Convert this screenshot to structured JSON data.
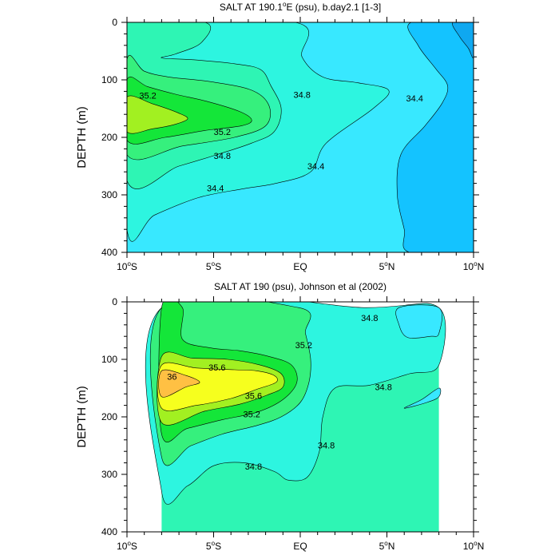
{
  "colors": {
    "c343": "#0fa8f0",
    "c344": "#14c3ff",
    "c346": "#38e8ff",
    "c348": "#2df5e0",
    "c350": "#2ef5b4",
    "c352": "#36f07d",
    "c354": "#14e639",
    "c356": "#a2f021",
    "c358": "#f6ff1e",
    "c360": "#ffc043",
    "nodata": "#ffffff"
  },
  "chart_data": [
    {
      "type": "contour",
      "title_main": "SALT AT 190.1",
      "title_deg": "o",
      "title_rest": "E (psu), b.day2.1 [1-3]",
      "ylabel": "DEPTH (m)",
      "xlim": [
        -10,
        10
      ],
      "ylim": [
        400,
        0
      ],
      "x_ticks": [
        {
          "x": -10,
          "label": "10",
          "deg": "o",
          "hemi": "S"
        },
        {
          "x": -5,
          "label": "5",
          "deg": "o",
          "hemi": "S"
        },
        {
          "x": 0,
          "label": "EQ",
          "deg": "",
          "hemi": ""
        },
        {
          "x": 5,
          "label": "5",
          "deg": "o",
          "hemi": "N"
        },
        {
          "x": 10,
          "label": "10",
          "deg": "o",
          "hemi": "N"
        }
      ],
      "y_ticks": [
        "0",
        "100",
        "200",
        "300",
        "400"
      ],
      "contour_labels": [
        {
          "text": "35.2",
          "x": -8.8,
          "y": 127
        },
        {
          "text": "35.2",
          "x": -4.5,
          "y": 190
        },
        {
          "text": "34.8",
          "x": -4.5,
          "y": 232
        },
        {
          "text": "34.4",
          "x": -4.9,
          "y": 288
        },
        {
          "text": "34.8",
          "x": 0.1,
          "y": 126
        },
        {
          "text": "34.4",
          "x": 0.9,
          "y": 250
        },
        {
          "text": "34.4",
          "x": 6.6,
          "y": 132
        }
      ],
      "regions": [
        {
          "level": "c346",
          "path": [
            [
              -10,
              0
            ],
            [
              10,
              0
            ],
            [
              10,
              400
            ],
            [
              -10,
              400
            ]
          ]
        },
        {
          "level": "c348",
          "path": [
            [
              -10,
              0
            ],
            [
              -0.3,
              0
            ],
            [
              0.1,
              60
            ],
            [
              1.3,
              95
            ],
            [
              3.3,
              105
            ],
            [
              5.1,
              118
            ],
            [
              4.2,
              150
            ],
            [
              1.5,
              210
            ],
            [
              0.6,
              260
            ],
            [
              -1.4,
              280
            ],
            [
              -3.4,
              290
            ],
            [
              -5.9,
              305
            ],
            [
              -8.4,
              335
            ],
            [
              -10,
              360
            ]
          ]
        },
        {
          "level": "c344",
          "path": [
            [
              6.4,
              0
            ],
            [
              10,
              0
            ],
            [
              10,
              400
            ],
            [
              6.3,
              400
            ],
            [
              6.0,
              360
            ],
            [
              5.6,
              300
            ],
            [
              5.8,
              230
            ],
            [
              7.2,
              180
            ],
            [
              8.2,
              140
            ],
            [
              8.5,
              110
            ],
            [
              7.8,
              80
            ],
            [
              6.8,
              40
            ]
          ]
        },
        {
          "level": "c343",
          "path": [
            [
              8.8,
              0
            ],
            [
              10,
              0
            ],
            [
              10,
              60
            ],
            [
              9.7,
              45
            ],
            [
              9.2,
              25
            ]
          ]
        },
        {
          "level": "c350",
          "path": [
            [
              -10,
              0
            ],
            [
              -5.5,
              0
            ],
            [
              -5.7,
              35
            ],
            [
              -7.2,
              55
            ],
            [
              -8.0,
              62
            ],
            [
              -6.2,
              65
            ],
            [
              -3.8,
              72
            ],
            [
              -2.3,
              82
            ],
            [
              -1.7,
              110
            ],
            [
              -1.1,
              150
            ],
            [
              -1.5,
              190
            ],
            [
              -2.8,
              210
            ],
            [
              -4.8,
              230
            ],
            [
              -7.0,
              250
            ],
            [
              -10,
              275
            ]
          ]
        },
        {
          "level": "c352",
          "path": [
            [
              -10,
              65
            ],
            [
              -9.0,
              85
            ],
            [
              -7.6,
              95
            ],
            [
              -5.2,
              103
            ],
            [
              -2.8,
              118
            ],
            [
              -1.8,
              145
            ],
            [
              -2.0,
              180
            ],
            [
              -3.8,
              200
            ],
            [
              -6.8,
              215
            ],
            [
              -10,
              230
            ]
          ]
        },
        {
          "level": "c354",
          "path": [
            [
              -10,
              100
            ],
            [
              -8.8,
              112
            ],
            [
              -7.2,
              125
            ],
            [
              -5.3,
              138
            ],
            [
              -3.5,
              155
            ],
            [
              -2.8,
              170
            ],
            [
              -3.4,
              180
            ],
            [
              -5.5,
              188
            ],
            [
              -7.8,
              200
            ],
            [
              -10,
              205
            ]
          ]
        },
        {
          "level": "c356",
          "path": [
            [
              -10,
              130
            ],
            [
              -8.5,
              142
            ],
            [
              -7.0,
              158
            ],
            [
              -6.5,
              168
            ],
            [
              -7.3,
              178
            ],
            [
              -8.5,
              185
            ],
            [
              -10,
              190
            ]
          ]
        }
      ]
    },
    {
      "type": "contour",
      "title_main": "SALT AT 190 (psu), Johnson et al (2002)",
      "title_deg": "",
      "title_rest": "",
      "ylabel": "DEPTH (m)",
      "xlim": [
        -10,
        10
      ],
      "ylim": [
        400,
        0
      ],
      "data_xlim": [
        -8,
        8
      ],
      "data_ylim": [
        10,
        400
      ],
      "x_ticks": [
        {
          "x": -10,
          "label": "10",
          "deg": "o",
          "hemi": "S"
        },
        {
          "x": -5,
          "label": "5",
          "deg": "o",
          "hemi": "S"
        },
        {
          "x": 0,
          "label": "EQ",
          "deg": "",
          "hemi": ""
        },
        {
          "x": 5,
          "label": "5",
          "deg": "o",
          "hemi": "N"
        },
        {
          "x": 10,
          "label": "10",
          "deg": "o",
          "hemi": "N"
        }
      ],
      "y_ticks": [
        "0",
        "100",
        "200",
        "300",
        "400"
      ],
      "contour_labels": [
        {
          "text": "34.8",
          "x": 4.0,
          "y": 28
        },
        {
          "text": "35.2",
          "x": 0.2,
          "y": 75
        },
        {
          "text": "35.6",
          "x": -4.8,
          "y": 114
        },
        {
          "text": "36",
          "x": -7.4,
          "y": 130
        },
        {
          "text": "35.6",
          "x": -2.7,
          "y": 163
        },
        {
          "text": "35.2",
          "x": -2.8,
          "y": 195
        },
        {
          "text": "34.8",
          "x": 4.8,
          "y": 148
        },
        {
          "text": "34.8",
          "x": 1.5,
          "y": 249
        },
        {
          "text": "34.8",
          "x": -2.7,
          "y": 286
        }
      ],
      "regions": [
        {
          "level": "c350",
          "path": [
            [
              -8,
              10
            ],
            [
              8,
              10
            ],
            [
              8,
              400
            ],
            [
              -8,
              400
            ]
          ]
        },
        {
          "level": "c348",
          "path": [
            [
              3.8,
              10
            ],
            [
              8,
              10
            ],
            [
              8,
              110
            ],
            [
              6.3,
              125
            ],
            [
              4.0,
              145
            ],
            [
              2.0,
              150
            ],
            [
              1.3,
              200
            ],
            [
              1.1,
              260
            ],
            [
              0.4,
              305
            ],
            [
              -0.7,
              310
            ],
            [
              -1.5,
              295
            ],
            [
              -3.2,
              280
            ],
            [
              -5.0,
              285
            ],
            [
              -6.5,
              320
            ],
            [
              -8,
              330
            ],
            [
              -8,
              10
            ]
          ]
        },
        {
          "level": "c346",
          "path": [
            [
              5.7,
              10
            ],
            [
              8,
              10
            ],
            [
              8,
              55
            ],
            [
              7.5,
              60
            ],
            [
              6.2,
              62
            ],
            [
              5.7,
              40
            ]
          ]
        },
        {
          "level": "c346",
          "path": [
            [
              8,
              150
            ],
            [
              7.0,
              170
            ],
            [
              6.0,
              185
            ],
            [
              7.3,
              175
            ],
            [
              8,
              165
            ]
          ]
        },
        {
          "level": "c352",
          "path": [
            [
              -8,
              10
            ],
            [
              -0.1,
              10
            ],
            [
              0.3,
              55
            ],
            [
              0.6,
              100
            ],
            [
              0.5,
              140
            ],
            [
              0.0,
              175
            ],
            [
              -1.1,
              200
            ],
            [
              -2.5,
              215
            ],
            [
              -4.5,
              230
            ],
            [
              -6.3,
              250
            ],
            [
              -8,
              270
            ]
          ]
        },
        {
          "level": "c354",
          "path": [
            [
              -8,
              10
            ],
            [
              -6.8,
              10
            ],
            [
              -6.8,
              65
            ],
            [
              -5.2,
              80
            ],
            [
              -3.5,
              85
            ],
            [
              -1.8,
              95
            ],
            [
              -0.5,
              110
            ],
            [
              -0.2,
              140
            ],
            [
              -1.0,
              170
            ],
            [
              -2.5,
              192
            ],
            [
              -4.5,
              205
            ],
            [
              -6.5,
              220
            ],
            [
              -8,
              230
            ]
          ]
        },
        {
          "level": "c356",
          "path": [
            [
              -8,
              95
            ],
            [
              -6.2,
              98
            ],
            [
              -4.2,
              100
            ],
            [
              -2.3,
              110
            ],
            [
              -1.1,
              125
            ],
            [
              -1.0,
              148
            ],
            [
              -1.9,
              162
            ],
            [
              -3.5,
              178
            ],
            [
              -5.5,
              190
            ],
            [
              -8,
              210
            ]
          ]
        },
        {
          "level": "c358",
          "path": [
            [
              -8,
              110
            ],
            [
              -6.0,
              115
            ],
            [
              -3.8,
              118
            ],
            [
              -2.5,
              120
            ],
            [
              -1.5,
              128
            ],
            [
              -1.4,
              140
            ],
            [
              -2.5,
              152
            ],
            [
              -4.0,
              168
            ],
            [
              -6.0,
              180
            ],
            [
              -8,
              185
            ]
          ]
        },
        {
          "level": "c360",
          "path": [
            [
              -8,
              120
            ],
            [
              -6.6,
              128
            ],
            [
              -5.8,
              140
            ],
            [
              -6.6,
              148
            ],
            [
              -8,
              165
            ]
          ]
        }
      ]
    }
  ]
}
